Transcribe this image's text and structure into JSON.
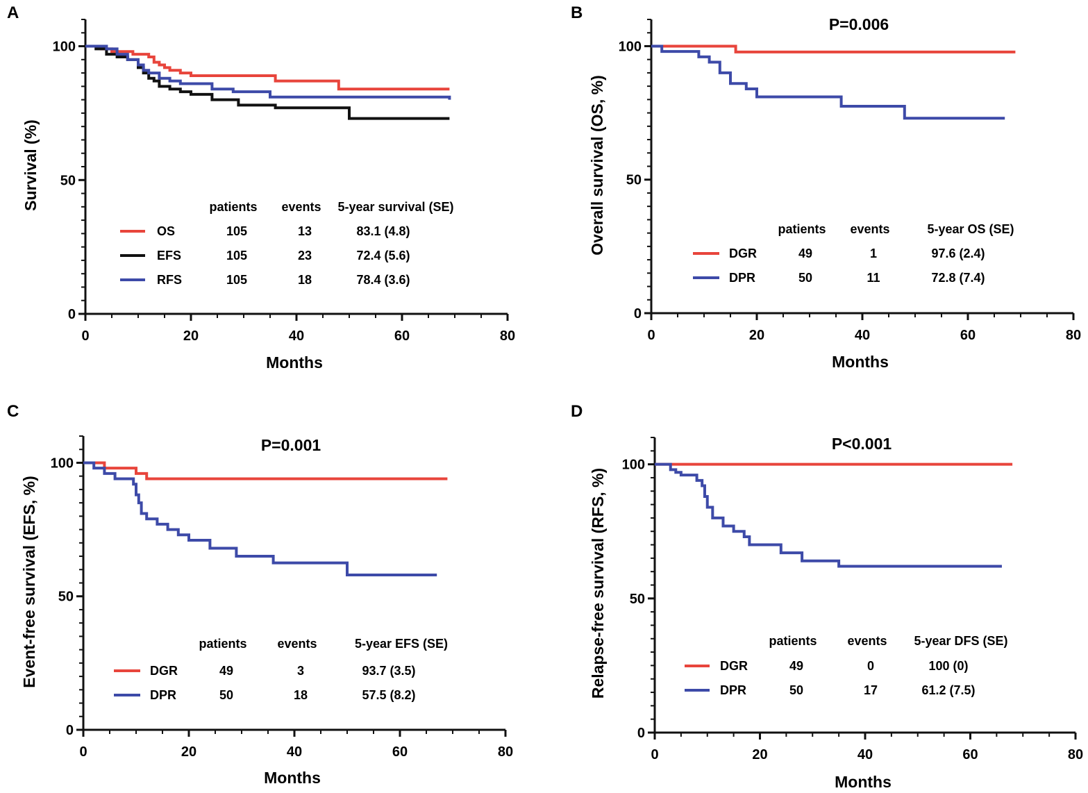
{
  "chart_data": [
    {
      "type": "line",
      "panel": "A",
      "title": "",
      "xlabel": "Months",
      "ylabel": "Survival (%)",
      "xlim": [
        0,
        80
      ],
      "ylim": [
        0,
        110
      ],
      "xticks": [
        "0",
        "20",
        "40",
        "60",
        "80"
      ],
      "yticks": [
        "0",
        "50",
        "100"
      ],
      "p_value": "",
      "legend_headers": [
        "patients",
        "events",
        "5-year survival (SE)"
      ],
      "series": [
        {
          "name": "OS",
          "color": "#e8453c",
          "patients": "105",
          "events": "13",
          "summary": "83.1 (4.8)",
          "x": [
            0,
            3,
            5,
            7,
            9,
            11,
            12,
            13,
            14,
            15,
            16,
            18,
            20,
            36,
            48,
            69
          ],
          "y": [
            100,
            99,
            98,
            98,
            97,
            97,
            96,
            94,
            93,
            92,
            91,
            90,
            89,
            87,
            84,
            84
          ]
        },
        {
          "name": "EFS",
          "color": "#111111",
          "patients": "105",
          "events": "23",
          "summary": "72.4 (5.6)",
          "x": [
            0,
            2,
            4,
            6,
            8,
            10,
            11,
            12,
            13,
            14,
            16,
            18,
            20,
            24,
            29,
            36,
            50,
            69
          ],
          "y": [
            100,
            99,
            97,
            96,
            95,
            92,
            90,
            88,
            87,
            85,
            84,
            83,
            82,
            80,
            78,
            77,
            73,
            73
          ]
        },
        {
          "name": "RFS",
          "color": "#3d4aa8",
          "patients": "105",
          "events": "18",
          "summary": "78.4 (3.6)",
          "x": [
            0,
            4,
            6,
            8,
            10,
            11,
            12,
            14,
            16,
            18,
            24,
            28,
            35,
            69
          ],
          "y": [
            100,
            99,
            97,
            95,
            93,
            91,
            90,
            88,
            87,
            86,
            84,
            83,
            81,
            80
          ]
        }
      ]
    },
    {
      "type": "line",
      "panel": "B",
      "title": "",
      "xlabel": "Months",
      "ylabel": "Overall survival (OS, %)",
      "xlim": [
        0,
        80
      ],
      "ylim": [
        0,
        110
      ],
      "xticks": [
        "0",
        "20",
        "40",
        "60",
        "80"
      ],
      "yticks": [
        "0",
        "50",
        "100"
      ],
      "p_value": "P=0.006",
      "legend_headers": [
        "patients",
        "events",
        "5-year OS (SE)"
      ],
      "series": [
        {
          "name": "DGR",
          "color": "#e8453c",
          "patients": "49",
          "events": "1",
          "summary": "97.6 (2.4)",
          "x": [
            0,
            16,
            69
          ],
          "y": [
            100,
            97.8,
            97.8
          ]
        },
        {
          "name": "DPR",
          "color": "#3d4aa8",
          "patients": "50",
          "events": "11",
          "summary": "72.8 (7.4)",
          "x": [
            0,
            2,
            9,
            11,
            13,
            15,
            18,
            20,
            36,
            48,
            67
          ],
          "y": [
            100,
            98,
            96,
            94,
            90,
            86,
            84,
            81,
            77.5,
            73,
            73
          ]
        }
      ]
    },
    {
      "type": "line",
      "panel": "C",
      "title": "",
      "xlabel": "Months",
      "ylabel": "Event-free survival (EFS, %)",
      "xlim": [
        0,
        80
      ],
      "ylim": [
        0,
        110
      ],
      "xticks": [
        "0",
        "20",
        "40",
        "60",
        "80"
      ],
      "yticks": [
        "0",
        "50",
        "100"
      ],
      "p_value": "P=0.001",
      "legend_headers": [
        "patients",
        "events",
        "5-year EFS (SE)"
      ],
      "series": [
        {
          "name": "DGR",
          "color": "#e8453c",
          "patients": "49",
          "events": "3",
          "summary": "93.7 (3.5)",
          "x": [
            0,
            4,
            10,
            12,
            69
          ],
          "y": [
            100,
            98,
            96,
            94,
            94
          ]
        },
        {
          "name": "DPR",
          "color": "#3d4aa8",
          "patients": "50",
          "events": "18",
          "summary": "57.5 (8.2)",
          "x": [
            0,
            2,
            4,
            6,
            8,
            9.5,
            10,
            10.5,
            11,
            12,
            14,
            16,
            18,
            20,
            24,
            29,
            36,
            50,
            67
          ],
          "y": [
            100,
            98,
            96,
            94,
            94,
            92,
            88,
            85,
            81,
            79,
            77,
            75,
            73,
            71,
            68,
            65,
            62.5,
            58,
            58
          ]
        }
      ]
    },
    {
      "type": "line",
      "panel": "D",
      "title": "",
      "xlabel": "Months",
      "ylabel": "Relapse-free survival (RFS, %)",
      "xlim": [
        0,
        80
      ],
      "ylim": [
        0,
        110
      ],
      "xticks": [
        "0",
        "20",
        "40",
        "60",
        "80"
      ],
      "yticks": [
        "0",
        "50",
        "100"
      ],
      "p_value": "P<0.001",
      "legend_headers": [
        "patients",
        "events",
        "5-year DFS (SE)"
      ],
      "series": [
        {
          "name": "DGR",
          "color": "#e8453c",
          "patients": "49",
          "events": "0",
          "summary": "100 (0)",
          "x": [
            0,
            68
          ],
          "y": [
            100,
            100
          ]
        },
        {
          "name": "DPR",
          "color": "#3d4aa8",
          "patients": "50",
          "events": "17",
          "summary": "61.2 (7.5)",
          "x": [
            0,
            3,
            4,
            5,
            8,
            9,
            9.5,
            10,
            11,
            13,
            15,
            17,
            18,
            24,
            28,
            35,
            66
          ],
          "y": [
            100,
            98,
            97,
            96,
            94,
            92,
            88,
            84,
            80,
            77,
            75,
            73,
            70,
            67,
            64,
            62,
            62
          ]
        }
      ]
    }
  ]
}
